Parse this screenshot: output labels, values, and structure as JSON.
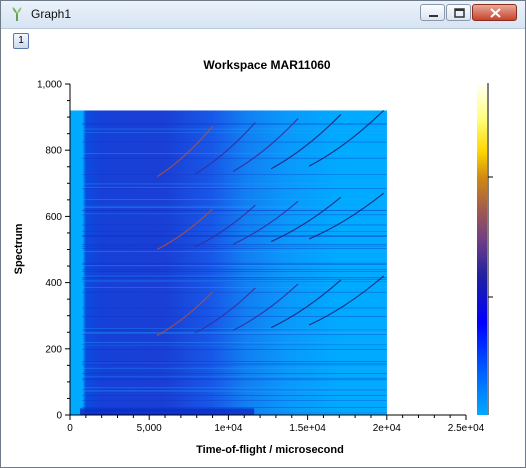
{
  "window": {
    "title": "Graph1"
  },
  "toolbar": {
    "layer_label": "1"
  },
  "chart_data": {
    "type": "heatmap",
    "title": "Workspace MAR11060",
    "xlabel": "Time-of-flight / microsecond",
    "ylabel": "Spectrum",
    "xlim": [
      0,
      25000
    ],
    "ylim": [
      0,
      1000
    ],
    "data_extent_x": [
      0,
      20000
    ],
    "data_extent_y": [
      0,
      920
    ],
    "x_ticks": [
      {
        "value": 0,
        "label": "0"
      },
      {
        "value": 5000,
        "label": "5,000"
      },
      {
        "value": 10000,
        "label": "1e+04"
      },
      {
        "value": 15000,
        "label": "1.5e+04"
      },
      {
        "value": 20000,
        "label": "2e+04"
      },
      {
        "value": 25000,
        "label": "2.5e+04"
      }
    ],
    "y_ticks": [
      {
        "value": 0,
        "label": "0"
      },
      {
        "value": 200,
        "label": "200"
      },
      {
        "value": 400,
        "label": "400"
      },
      {
        "value": 600,
        "label": "600"
      },
      {
        "value": 800,
        "label": "800"
      },
      {
        "value": 1000,
        "label": "1,000"
      }
    ],
    "colormap": [
      "#00aaff",
      "#0066ff",
      "#0000ff",
      "#2020a0",
      "#6a3a8a",
      "#a05a50",
      "#d08a10",
      "#ffd700",
      "#ffff80",
      "#fffff0"
    ],
    "background_color": "#00aaff"
  }
}
